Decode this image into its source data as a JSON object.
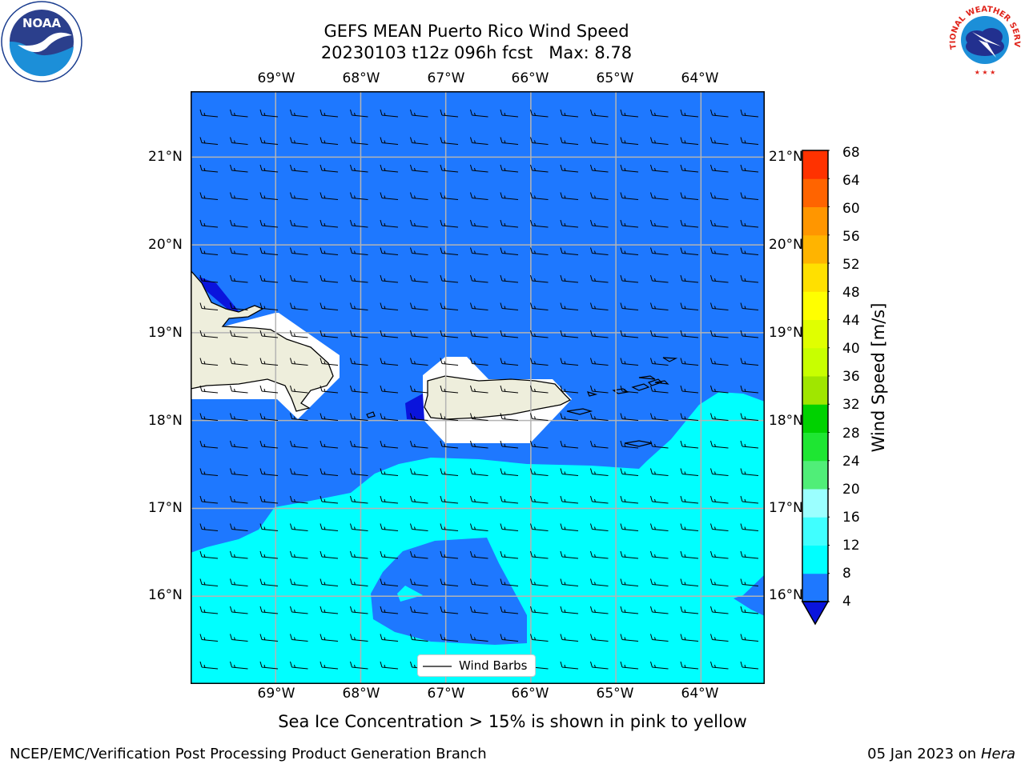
{
  "title": {
    "line1": "GEFS MEAN Puerto Rico Wind Speed",
    "line2": "20230103 t12z 096h fcst   Max: 8.78"
  },
  "logos": {
    "left": {
      "icon": "noaa-logo",
      "text": "NOAA",
      "ring_text": "NATIONAL OCEANIC AND ATMOSPHERIC ADMINISTRATION · U.S. DEPARTMENT OF COMMERCE"
    },
    "right": {
      "icon": "nws-logo",
      "ring_text": "NATIONAL WEATHER SERVICE"
    }
  },
  "map": {
    "lon_labels": [
      "69°W",
      "68°W",
      "67°W",
      "66°W",
      "65°W",
      "64°W"
    ],
    "lat_labels": [
      "21°N",
      "20°N",
      "19°N",
      "18°N",
      "17°N",
      "16°N"
    ],
    "lon_range": [
      -70.0,
      -63.25
    ],
    "lat_range": [
      15.0,
      21.75
    ],
    "lon_values": [
      -69,
      -68,
      -67,
      -66,
      -65,
      -64
    ],
    "lat_values": [
      21,
      20,
      19,
      18,
      17,
      16
    ],
    "legend_label": "Wind Barbs",
    "colors": {
      "land": "#eeeedc",
      "ocean_4_8": "#1e78ff",
      "ocean_8_12": "#00ffff",
      "below_4": "#0a14dc",
      "grid": "#b4b4b4"
    }
  },
  "colorbar": {
    "label": "Wind Speed [m/s]",
    "ticks": [
      "4",
      "8",
      "12",
      "16",
      "20",
      "24",
      "28",
      "32",
      "36",
      "40",
      "44",
      "48",
      "52",
      "56",
      "60",
      "64",
      "68"
    ],
    "colors": [
      "#1e78ff",
      "#00ffff",
      "#40ffff",
      "#9bffff",
      "#50ee78",
      "#1ee632",
      "#00d200",
      "#a0e600",
      "#c8ff00",
      "#e0ff00",
      "#ffff00",
      "#ffe000",
      "#ffb400",
      "#ff9600",
      "#ff6400",
      "#ff3200",
      "#ff0000"
    ],
    "under_color": "#0a14dc"
  },
  "caption": "Sea Ice Concentration > 15% is shown in pink to yellow",
  "footer": {
    "left": "NCEP/EMC/Verification Post Processing Product Generation Branch",
    "date": "05 Jan 2023 on ",
    "machine": "Hera"
  }
}
